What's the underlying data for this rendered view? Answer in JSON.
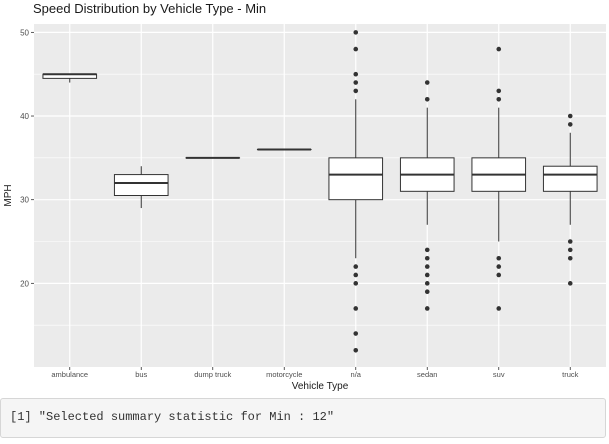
{
  "chart_data": {
    "type": "boxplot",
    "title": "Speed Distribution by Vehicle Type - Min",
    "xlabel": "Vehicle Type",
    "ylabel": "MPH",
    "ylim": [
      10,
      51
    ],
    "yticks": [
      20,
      30,
      40,
      50
    ],
    "grid": true,
    "categories": [
      "ambulance",
      "bus",
      "dump truck",
      "motorcycle",
      "n/a",
      "sedan",
      "suv",
      "truck"
    ],
    "boxes": [
      {
        "category": "ambulance",
        "min": 44,
        "q1": 44.5,
        "median": 45,
        "q3": 45,
        "max": 45,
        "outliers": []
      },
      {
        "category": "bus",
        "min": 29,
        "q1": 30.5,
        "median": 32,
        "q3": 33,
        "max": 34,
        "outliers": []
      },
      {
        "category": "dump truck",
        "min": 35,
        "q1": 35,
        "median": 35,
        "q3": 35,
        "max": 35,
        "outliers": []
      },
      {
        "category": "motorcycle",
        "min": 36,
        "q1": 36,
        "median": 36,
        "q3": 36,
        "max": 36,
        "outliers": []
      },
      {
        "category": "n/a",
        "min": 23,
        "q1": 30,
        "median": 33,
        "q3": 35,
        "max": 42,
        "outliers": [
          50,
          48,
          45,
          44,
          43,
          22,
          21,
          20,
          17,
          14,
          12
        ]
      },
      {
        "category": "sedan",
        "min": 27,
        "q1": 31,
        "median": 33,
        "q3": 35,
        "max": 41,
        "outliers": [
          44,
          42,
          24,
          23,
          22,
          21,
          20,
          19,
          17
        ]
      },
      {
        "category": "suv",
        "min": 25,
        "q1": 31,
        "median": 33,
        "q3": 35,
        "max": 41,
        "outliers": [
          48,
          43,
          42,
          23,
          22,
          21,
          17
        ]
      },
      {
        "category": "truck",
        "min": 27,
        "q1": 31,
        "median": 33,
        "q3": 34,
        "max": 38,
        "outliers": [
          40,
          39,
          25,
          24,
          23,
          20
        ]
      }
    ],
    "colors": {
      "panel": "#ebebeb",
      "grid": "#ffffff",
      "box_fill": "#ffffff",
      "line": "#333333",
      "axis_text": "#4d4d4d"
    }
  },
  "console": {
    "text": "[1] \"Selected summary statistic for Min : 12\""
  }
}
